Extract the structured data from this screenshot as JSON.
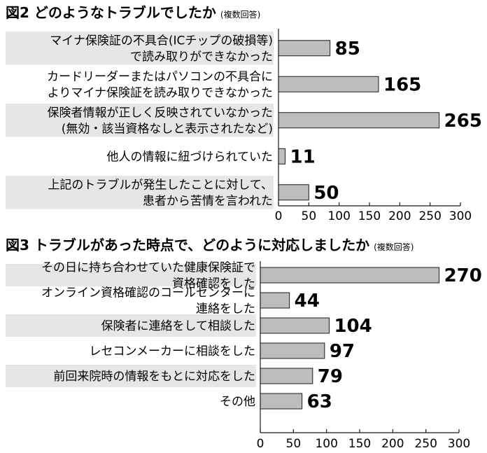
{
  "colors": {
    "bar_fill": "#bdbdbd",
    "bar_stroke": "#231815",
    "label_band": "#e6e6e6",
    "axis": "#231815"
  },
  "chart_data": [
    {
      "type": "bar",
      "orientation": "horizontal",
      "title": "図2 どのようなトラブルでしたか",
      "title_note": "(複数回答)",
      "categories": [
        [
          "マイナ保険証の不具合(ICチップの破損等)",
          "で読み取りができなかった"
        ],
        [
          "カードリーダーまたはパソコンの不具合に",
          "よりマイナ保険証を読み取りできなかった"
        ],
        [
          "保険者情報が正しく反映されていなかった",
          "(無効・該当資格なしと表示されたなど)"
        ],
        [
          "他人の情報に紐づけられていた"
        ],
        [
          "上記のトラブルが発生したことに対して、",
          "患者から苦情を言われた"
        ]
      ],
      "values": [
        85,
        165,
        265,
        11,
        50
      ],
      "value_labels": [
        "85",
        "165",
        "265",
        "11",
        "50"
      ],
      "xlim": [
        0,
        300
      ],
      "ticks": [
        0,
        50,
        100,
        150,
        200,
        250,
        300
      ],
      "tick_labels": [
        "0",
        "50",
        "100",
        "150",
        "200",
        "250",
        "300"
      ],
      "grid": false
    },
    {
      "type": "bar",
      "orientation": "horizontal",
      "title": "図3 トラブルがあった時点で、どのように対応しましたか",
      "title_note": "(複数回答)",
      "categories": [
        [
          "その日に持ち合わせていた健康保険証で",
          "資格確認をした"
        ],
        [
          "オンライン資格確認のコールセンターに",
          "連絡をした"
        ],
        [
          "保険者に連絡をして相談した"
        ],
        [
          "レセコンメーカーに相談をした"
        ],
        [
          "前回来院時の情報をもとに対応をした"
        ],
        [
          "その他"
        ]
      ],
      "values": [
        270,
        44,
        104,
        97,
        79,
        63
      ],
      "value_labels": [
        "270",
        "44",
        "104",
        "97",
        "79",
        "63"
      ],
      "xlim": [
        0,
        300
      ],
      "ticks": [
        0,
        50,
        100,
        150,
        200,
        250,
        300
      ],
      "tick_labels": [
        "0",
        "50",
        "100",
        "150",
        "200",
        "250",
        "300"
      ],
      "grid": false
    }
  ]
}
